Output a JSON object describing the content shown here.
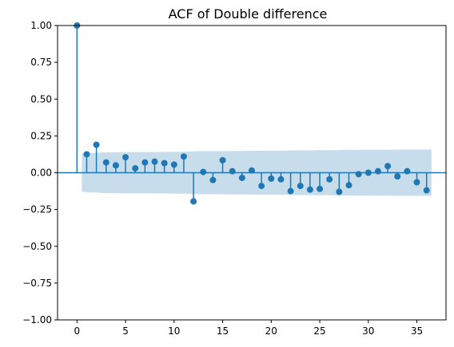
{
  "chart_data": {
    "type": "stem",
    "title": "ACF of Double difference",
    "xlabel": "",
    "ylabel": "",
    "xlim": [
      -2,
      38
    ],
    "ylim": [
      -1.0,
      1.0
    ],
    "x_ticks": [
      0,
      5,
      10,
      15,
      20,
      25,
      30,
      35
    ],
    "y_ticks": [
      1.0,
      0.75,
      0.5,
      0.25,
      0.0,
      -0.25,
      -0.5,
      -0.75,
      -1.0
    ],
    "x_tick_labels": [
      "0",
      "5",
      "10",
      "15",
      "20",
      "25",
      "30",
      "35"
    ],
    "y_tick_labels": [
      "1.00",
      "0.75",
      "0.50",
      "0.25",
      "0.00",
      "−0.25",
      "−0.50",
      "−0.75",
      "−1.00"
    ],
    "grid": false,
    "series": [
      {
        "lags": [
          0,
          1,
          2,
          3,
          4,
          5,
          6,
          7,
          8,
          9,
          10,
          11,
          12,
          13,
          14,
          15,
          16,
          17,
          18,
          19,
          20,
          21,
          22,
          23,
          24,
          25,
          26,
          27,
          28,
          29,
          30,
          31,
          32,
          33,
          34,
          35,
          36
        ],
        "values": [
          1.0,
          0.125,
          0.19,
          0.07,
          0.05,
          0.105,
          0.03,
          0.07,
          0.075,
          0.065,
          0.055,
          0.11,
          -0.195,
          0.005,
          -0.05,
          0.085,
          0.01,
          -0.035,
          0.015,
          -0.09,
          -0.04,
          -0.045,
          -0.125,
          -0.09,
          -0.115,
          -0.11,
          -0.045,
          -0.13,
          -0.085,
          -0.01,
          0.0,
          0.01,
          0.045,
          -0.025,
          0.01,
          -0.065,
          -0.12
        ]
      }
    ],
    "confidence_band": {
      "lags": [
        0.5,
        1,
        2,
        3,
        4,
        5,
        6,
        7,
        8,
        9,
        10,
        11,
        12,
        13,
        14,
        15,
        16,
        17,
        18,
        19,
        20,
        21,
        22,
        23,
        24,
        25,
        26,
        27,
        28,
        29,
        30,
        31,
        32,
        33,
        34,
        35,
        36,
        36.5
      ],
      "upper": [
        0.13,
        0.132,
        0.135,
        0.138,
        0.139,
        0.14,
        0.14,
        0.14,
        0.141,
        0.141,
        0.142,
        0.142,
        0.145,
        0.146,
        0.146,
        0.147,
        0.148,
        0.148,
        0.149,
        0.149,
        0.15,
        0.15,
        0.151,
        0.152,
        0.152,
        0.153,
        0.153,
        0.154,
        0.155,
        0.155,
        0.156,
        0.156,
        0.156,
        0.157,
        0.157,
        0.157,
        0.158,
        0.158
      ],
      "lower": [
        -0.13,
        -0.132,
        -0.135,
        -0.138,
        -0.139,
        -0.14,
        -0.14,
        -0.14,
        -0.141,
        -0.141,
        -0.142,
        -0.142,
        -0.145,
        -0.146,
        -0.146,
        -0.147,
        -0.148,
        -0.148,
        -0.149,
        -0.149,
        -0.15,
        -0.15,
        -0.151,
        -0.152,
        -0.152,
        -0.153,
        -0.153,
        -0.154,
        -0.155,
        -0.155,
        -0.156,
        -0.156,
        -0.156,
        -0.157,
        -0.157,
        -0.157,
        -0.158,
        -0.158
      ]
    },
    "colors": {
      "stem": "#1f77b4",
      "marker": "#1f77b4",
      "band": "#1f77b4",
      "zero_line": "#1f77b4"
    }
  }
}
